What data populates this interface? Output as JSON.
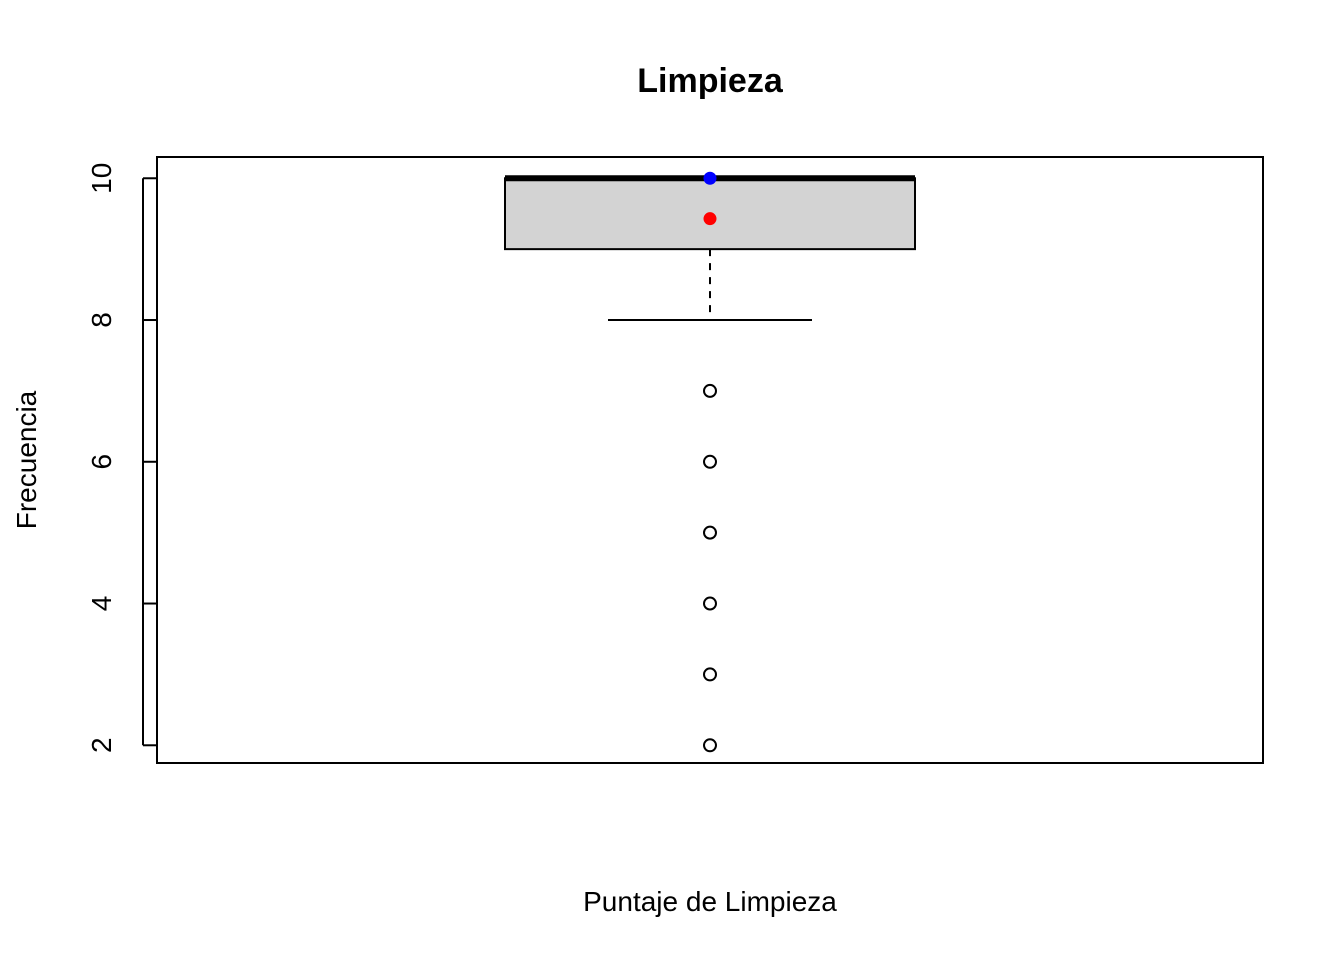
{
  "chart_data": {
    "type": "boxplot",
    "title": "Limpieza",
    "xlabel": "Puntaje de Limpieza",
    "ylabel": "Frecuencia",
    "ylim": [
      1.75,
      10.3
    ],
    "yticks": [
      2,
      4,
      6,
      8,
      10
    ],
    "ytick_labels": [
      "2",
      "4",
      "6",
      "8",
      "10"
    ],
    "grid": false,
    "box": {
      "whisker_low": 8,
      "q1": 9,
      "median": 10,
      "q3": 10,
      "whisker_high": 10,
      "fill": "#d3d3d3"
    },
    "outliers": [
      7,
      6,
      5,
      4,
      3,
      2
    ],
    "markers": [
      {
        "value": 10,
        "color": "#0000ff"
      },
      {
        "value": 9.43,
        "color": "#ff0000"
      }
    ]
  }
}
